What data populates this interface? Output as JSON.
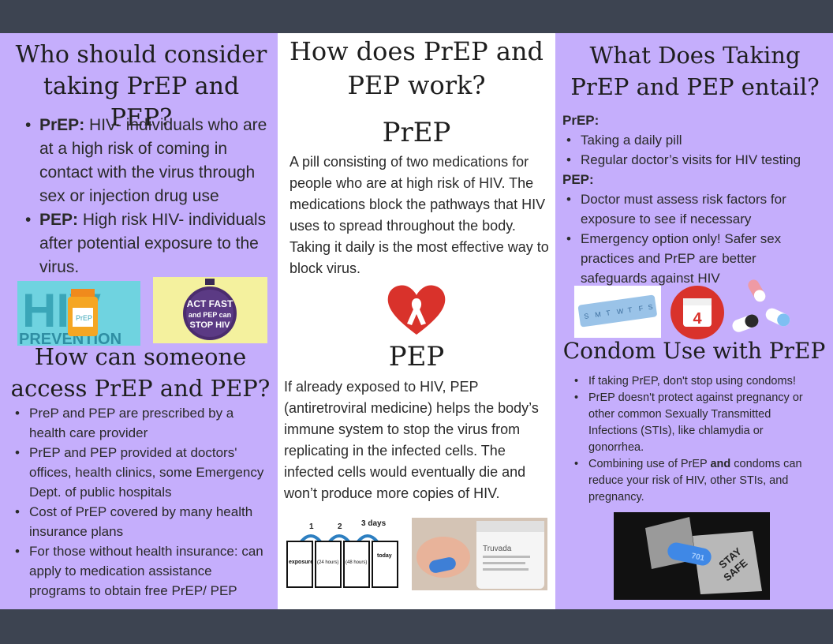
{
  "left": {
    "title": "Who should consider taking PrEP and PEP?",
    "bullets": [
      {
        "bold": "PrEP:",
        "text": " HIV- individuals who are at a high risk of coming in contact with the virus through sex or injection drug use"
      },
      {
        "bold": "PEP:",
        "text": " High risk HIV- individuals after potential exposure to the virus."
      }
    ],
    "image1": {
      "text1": "HIV",
      "text2": "PREVENTION",
      "label": "PrEP"
    },
    "image2": {
      "line1": "ACT FAST",
      "line2": "and PEP can",
      "line3": "STOP HIV"
    },
    "access_title": "How can someone access PrEP and PEP?",
    "access_items": [
      "PreP and PEP are prescribed by a health care provider",
      "PrEP and PEP provided at doctors' offices, health clinics, some Emergency Dept. of public hospitals",
      "Cost of PrEP covered by many health insurance plans",
      "For those without health insurance: can apply to medication assistance programs to obtain free PrEP/ PEP"
    ]
  },
  "middle": {
    "title": "How does PrEP and PEP work?",
    "prep_heading": "PrEP",
    "prep_text": "A pill consisting of two medications for people who are at high risk of HIV. The medications block the pathways that HIV uses to spread throughout the body. Taking it daily is the most effective way to block virus.",
    "pep_heading": "PEP",
    "pep_text": "If already exposed to HIV, PEP (antiretroviral medicine) helps the body’s immune system to stop the virus from replicating in the infected cells. The infected cells would eventually die and won’t produce more copies of HIV.",
    "timeline": {
      "labels": [
        "1",
        "2",
        "3 days"
      ],
      "cards": [
        "exposure",
        "(24 hours)",
        "(48 hours)",
        "today"
      ]
    },
    "truvada_label": "Truvada"
  },
  "right": {
    "title": "What Does Taking PrEP and PEP entail?",
    "prep_label": "PrEP:",
    "prep_items": [
      "Taking a daily pill",
      "Regular doctor’s visits for HIV testing"
    ],
    "pep_label": "PEP:",
    "pep_items": [
      "Doctor must assess risk factors for exposure to see if necessary",
      "Emergency option only! Safer sex practices and PrEP are better safeguards against HIV"
    ],
    "pillbox_days": [
      "S",
      "M",
      "T",
      "W",
      "T",
      "F",
      "S"
    ],
    "calendar_number": "4",
    "condom_title": "Condom Use with PrEP",
    "condom_items": [
      {
        "pre": "If taking PrEP, don't stop using condoms!",
        "bold": "",
        "post": ""
      },
      {
        "pre": "PrEP doesn't protect against pregnancy or other common Sexually Transmitted Infections (STIs), like chlamydia or gonorrhea.",
        "bold": "",
        "post": ""
      },
      {
        "pre": "Combining use of PrEP ",
        "bold": "and",
        "post": " condoms can reduce your risk of HIV, other STIs, and pregnancy."
      }
    ],
    "stay_safe": [
      "STAY",
      "SAFE"
    ],
    "pill_mark": "701"
  },
  "colors": {
    "purple": "#c5aefc",
    "dark": "#3d4451",
    "teal": "#6fd3e0",
    "red": "#d9322b"
  }
}
